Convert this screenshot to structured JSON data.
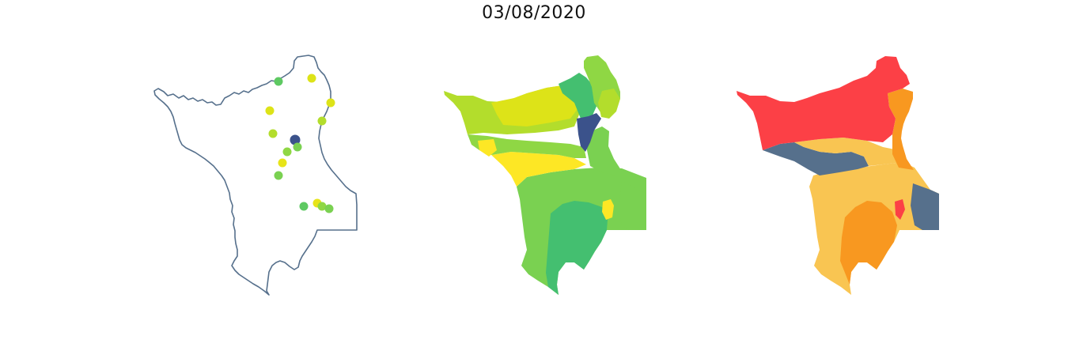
{
  "title": "03/08/2020",
  "colors": {
    "outline": "#56708c",
    "station_palette": [
      "#e7e419",
      "#dde318",
      "#b3dd2c",
      "#8fd744",
      "#7ad151",
      "#5ec962",
      "#44bf70",
      "#3b528b"
    ],
    "choropleth_palette": [
      "#dde318",
      "#b3dd2c",
      "#7ad151",
      "#44bf70",
      "#fde725",
      "#3b528b",
      "#8fd744"
    ],
    "category_palette": [
      "#fc4046",
      "#f89820",
      "#f9c552",
      "#56708c"
    ]
  },
  "panels": [
    {
      "name": "station-map",
      "kind": "points"
    },
    {
      "name": "choropleth-map",
      "kind": "regions"
    },
    {
      "name": "category-map",
      "kind": "regions"
    }
  ]
}
